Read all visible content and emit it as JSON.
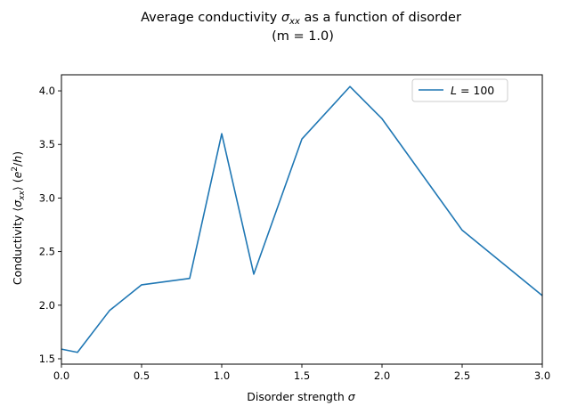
{
  "chart_data": {
    "type": "line",
    "title_line1_prefix": "Average conductivity ",
    "title_line1_sym": "σ",
    "title_line1_sub": "xx",
    "title_line1_suffix": " as a function of disorder",
    "title_line2": "(m = 1.0)",
    "xlabel_text": "Disorder strength ",
    "xlabel_sym": "σ",
    "ylabel_prefix": "Conductivity ⟨",
    "ylabel_sym": "σ",
    "ylabel_sub": "xx",
    "ylabel_mid": "⟩ (",
    "ylabel_e": "e",
    "ylabel_exp": "2",
    "ylabel_slash": "/",
    "ylabel_h": "h",
    "ylabel_close": ")",
    "xlim": [
      0,
      3.0
    ],
    "ylim": [
      1.45,
      4.15
    ],
    "xticks": [
      0.0,
      0.5,
      1.0,
      1.5,
      2.0,
      2.5,
      3.0
    ],
    "xtick_labels": [
      "0.0",
      "0.5",
      "1.0",
      "1.5",
      "2.0",
      "2.5",
      "3.0"
    ],
    "yticks": [
      1.5,
      2.0,
      2.5,
      3.0,
      3.5,
      4.0
    ],
    "ytick_labels": [
      "1.5",
      "2.0",
      "2.5",
      "3.0",
      "3.5",
      "4.0"
    ],
    "grid": false,
    "legend_position": "upper-right",
    "series": [
      {
        "name_sym": "L",
        "name_rest": " = 100",
        "color": "#1f77b4",
        "x": [
          0.0,
          0.1,
          0.3,
          0.5,
          0.8,
          1.0,
          1.2,
          1.5,
          1.8,
          2.0,
          2.5,
          3.0
        ],
        "y": [
          1.59,
          1.56,
          1.95,
          2.19,
          2.25,
          3.6,
          2.29,
          3.55,
          4.04,
          3.74,
          2.7,
          2.09
        ]
      }
    ]
  }
}
